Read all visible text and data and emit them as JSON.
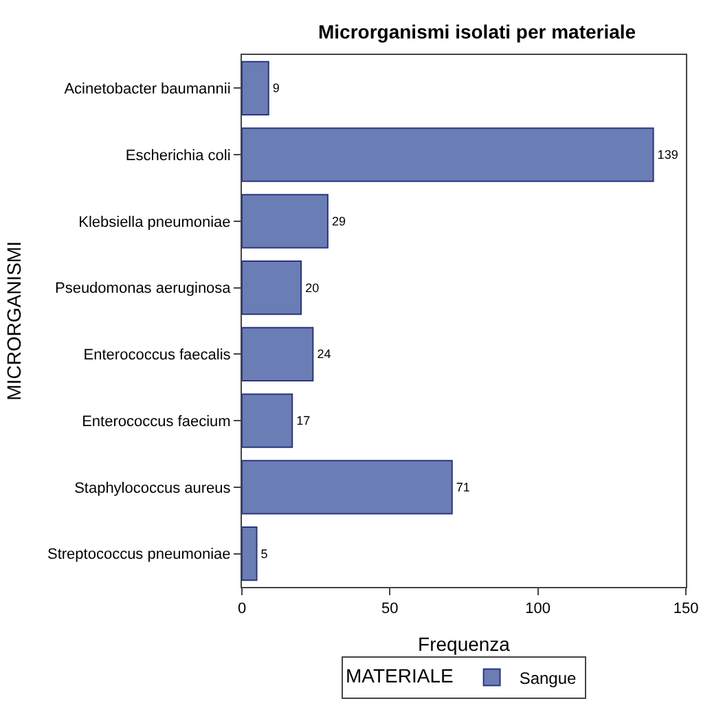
{
  "chart_data": {
    "type": "bar",
    "orientation": "horizontal",
    "title": "Microrganismi isolati per materiale",
    "xlabel": "Frequenza",
    "ylabel": "MICRORGANISMI",
    "legend_title": "MATERIALE",
    "categories": [
      "Acinetobacter baumannii",
      "Escherichia coli",
      "Klebsiella pneumoniae",
      "Pseudomonas aeruginosa",
      "Enterococcus faecalis",
      "Enterococcus faecium",
      "Staphylococcus aureus",
      "Streptococcus pneumoniae"
    ],
    "series": [
      {
        "name": "Sangue",
        "color": "#6b7db5",
        "values": [
          9,
          139,
          29,
          20,
          24,
          17,
          71,
          5
        ]
      }
    ],
    "xlim": [
      0,
      150
    ],
    "xticks": [
      0,
      50,
      100,
      150
    ],
    "data_labels": true,
    "legend": "bottom"
  }
}
